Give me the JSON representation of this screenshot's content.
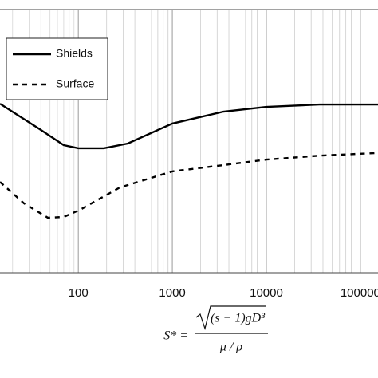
{
  "chart_data": {
    "type": "line",
    "xlabel": {
      "lhs": "S* =",
      "numerator": "(s − 1)gD³",
      "denominator": "μ / ρ"
    },
    "xlim": [
      14.7,
      154000
    ],
    "ylim": [
      0,
      1
    ],
    "xticks": [
      100,
      1000,
      10000,
      100000
    ],
    "log_x": true,
    "grid": true,
    "legend": "upper left",
    "series": [
      {
        "name": "Shields",
        "color": "#000000",
        "dash": "solid",
        "x": [
          14.7,
          39,
          70,
          100,
          187,
          336,
          1000,
          3500,
          10000,
          36700,
          154000
        ],
        "values": [
          0.642,
          0.545,
          0.485,
          0.473,
          0.473,
          0.491,
          0.567,
          0.612,
          0.63,
          0.639,
          0.639
        ]
      },
      {
        "name": "Surface",
        "color": "#000000",
        "dash": "dashed",
        "x": [
          14.7,
          26.4,
          47.5,
          70,
          104,
          276,
          1000,
          3500,
          10000,
          36700,
          154000
        ],
        "values": [
          0.345,
          0.264,
          0.209,
          0.212,
          0.239,
          0.324,
          0.385,
          0.409,
          0.43,
          0.445,
          0.455
        ]
      }
    ]
  }
}
